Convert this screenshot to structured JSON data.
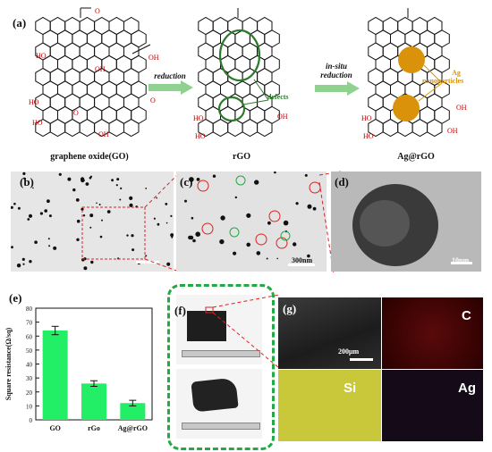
{
  "panel_a": {
    "label": "(a)",
    "caption_go": "graphene oxide(GO)",
    "caption_rgo": "rGO",
    "caption_ag": "Ag@rGO",
    "arrow1_label": "reduction",
    "arrow2_label_line1": "in-situ",
    "arrow2_label_line2": "reduction",
    "defects_label": "defects",
    "nano_label_line1": "Ag",
    "nano_label_line2": "nanoparticles",
    "go_groups": [
      "OH",
      "HO",
      "HO",
      "OH",
      "O",
      "HO",
      "O",
      "OH",
      "O"
    ],
    "rgo_groups": [
      "HO",
      "OH",
      "HO"
    ],
    "ag_groups": [
      "HO",
      "OH",
      "HO",
      "OH"
    ]
  },
  "panel_b": {
    "label": "(b)"
  },
  "panel_c": {
    "label": "(c)",
    "scale": "300nm"
  },
  "panel_d": {
    "label": "(d)",
    "scale": "10nm"
  },
  "panel_e": {
    "label": "(e)"
  },
  "panel_f": {
    "label": "(f)"
  },
  "panel_g": {
    "label": "(g)",
    "scale": "200μm",
    "maps": [
      "C",
      "Si",
      "Ag"
    ]
  },
  "colors": {
    "bar": "#22ee66",
    "silver": "#d9920a",
    "defect": "#2d7a2d",
    "dashed_red": "#e02020",
    "dashed_green": "#22aa44"
  },
  "chart_data": {
    "type": "bar",
    "categories": [
      "GO",
      "rGo",
      "Ag@rGO"
    ],
    "values": [
      64,
      26,
      12
    ],
    "errors": [
      3,
      2,
      2
    ],
    "ylabel": "Square resistance(Ω/sq)",
    "ylim": [
      0,
      80
    ],
    "yticks": [
      0,
      10,
      20,
      30,
      40,
      50,
      60,
      70,
      80
    ],
    "grid": false
  }
}
